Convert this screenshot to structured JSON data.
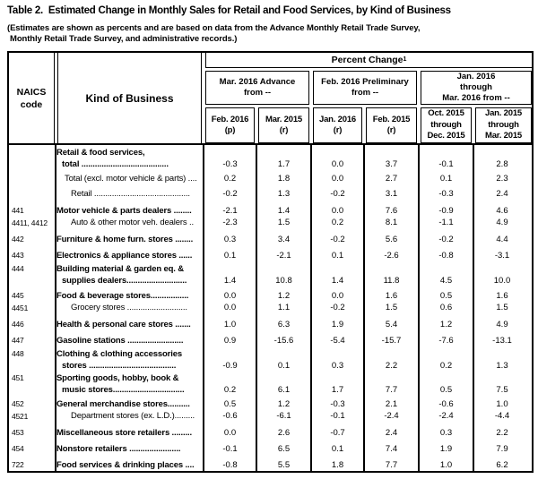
{
  "title": "Table 2.  Estimated Change in Monthly Sales for Retail and Food Services, by Kind of Business",
  "subtitle": {
    "line1": "(Estimates are shown as percents and are based on data from the Advance Monthly Retail Trade Survey,",
    "line2": "Monthly Retail Trade Survey, and administrative records.)"
  },
  "header": {
    "naics_line1": "NAICS",
    "naics_line2": "code",
    "kind_of_business": "Kind of Business",
    "percent_change": "Percent Change",
    "percent_change_note": "1",
    "groups": [
      {
        "label": "Mar. 2016 Advance\nfrom --"
      },
      {
        "label": "Feb. 2016 Preliminary\nfrom --"
      },
      {
        "label": "Jan. 2016\nthrough\nMar. 2016 from --"
      }
    ],
    "columns": [
      {
        "label": "Feb. 2016\n(p)"
      },
      {
        "label": "Mar. 2015\n(r)"
      },
      {
        "label": "Jan. 2016\n(r)"
      },
      {
        "label": "Feb. 2015\n(r)"
      },
      {
        "label": "Oct. 2015\nthrough\nDec. 2015"
      },
      {
        "label": "Jan. 2015\nthrough\nMar. 2015"
      }
    ]
  },
  "rows": [
    {
      "naics": "",
      "lines": [
        "Retail & food services,",
        "total ......................................."
      ],
      "bold": true,
      "level": 0,
      "values": [
        "-0.3",
        "1.7",
        "0.0",
        "3.7",
        "-0.1",
        "2.8"
      ]
    },
    {
      "naics": "",
      "lines": [
        "Total (excl. motor vehicle & parts) ...."
      ],
      "bold": false,
      "level": 1,
      "values": [
        "0.2",
        "1.8",
        "0.0",
        "2.7",
        "0.1",
        "2.3"
      ]
    },
    {
      "naics": "",
      "lines": [
        "Retail ..........................................."
      ],
      "bold": false,
      "level": 2,
      "values": [
        "-0.2",
        "1.3",
        "-0.2",
        "3.1",
        "-0.3",
        "2.4"
      ]
    },
    {
      "naics": "441",
      "lines": [
        "Motor vehicle & parts dealers ........"
      ],
      "bold": true,
      "level": 0,
      "values": [
        "-2.1",
        "1.4",
        "0.0",
        "7.6",
        "-0.9",
        "4.6"
      ]
    },
    {
      "naics": "4411, 4412",
      "lines": [
        "Auto & other motor veh. dealers .."
      ],
      "bold": false,
      "level": 2,
      "values": [
        "-2.3",
        "1.5",
        "0.2",
        "8.1",
        "-1.1",
        "4.9"
      ]
    },
    {
      "naics": "442",
      "lines": [
        "Furniture & home furn. stores ........"
      ],
      "bold": true,
      "level": 0,
      "values": [
        "0.3",
        "3.4",
        "-0.2",
        "5.6",
        "-0.2",
        "4.4"
      ]
    },
    {
      "naics": "443",
      "lines": [
        "Electronics & appliance stores ......"
      ],
      "bold": true,
      "level": 0,
      "values": [
        "0.1",
        "-2.1",
        "0.1",
        "-2.6",
        "-0.8",
        "-3.1"
      ]
    },
    {
      "naics": "444",
      "lines": [
        "Building material & garden eq. &",
        "supplies dealers..........................."
      ],
      "bold": true,
      "level": 0,
      "values": [
        "1.4",
        "10.8",
        "1.4",
        "11.8",
        "4.5",
        "10.0"
      ]
    },
    {
      "naics": "445",
      "lines": [
        "Food & beverage stores................."
      ],
      "bold": true,
      "level": 0,
      "values": [
        "0.0",
        "1.2",
        "0.0",
        "1.6",
        "0.5",
        "1.6"
      ]
    },
    {
      "naics": "4451",
      "lines": [
        "Grocery stores ..........................."
      ],
      "bold": false,
      "level": 2,
      "values": [
        "0.0",
        "1.1",
        "-0.2",
        "1.5",
        "0.6",
        "1.5"
      ]
    },
    {
      "naics": "446",
      "lines": [
        "Health & personal care stores ......."
      ],
      "bold": true,
      "level": 0,
      "values": [
        "1.0",
        "6.3",
        "1.9",
        "5.4",
        "1.2",
        "4.9"
      ]
    },
    {
      "naics": "447",
      "lines": [
        "Gasoline stations ........................."
      ],
      "bold": true,
      "level": 0,
      "values": [
        "0.9",
        "-15.6",
        "-5.4",
        "-15.7",
        "-7.6",
        "-13.1"
      ]
    },
    {
      "naics": "448",
      "lines": [
        "Clothing & clothing accessories",
        "stores ......................................."
      ],
      "bold": true,
      "level": 0,
      "values": [
        "-0.9",
        "0.1",
        "0.3",
        "2.2",
        "0.2",
        "1.3"
      ]
    },
    {
      "naics": "451",
      "lines": [
        "Sporting goods, hobby, book &",
        "music stores................................"
      ],
      "bold": true,
      "level": 0,
      "values": [
        "0.2",
        "6.1",
        "1.7",
        "7.7",
        "0.5",
        "7.5"
      ]
    },
    {
      "naics": "452",
      "lines": [
        "General merchandise stores.........."
      ],
      "bold": true,
      "level": 0,
      "values": [
        "0.5",
        "1.2",
        "-0.3",
        "2.1",
        "-0.6",
        "1.0"
      ]
    },
    {
      "naics": "4521",
      "lines": [
        "Department stores (ex. L.D.)........."
      ],
      "bold": false,
      "level": 2,
      "values": [
        "-0.6",
        "-6.1",
        "-0.1",
        "-2.4",
        "-2.4",
        "-4.4"
      ]
    },
    {
      "naics": "453",
      "lines": [
        "Miscellaneous store retailers ........."
      ],
      "bold": true,
      "level": 0,
      "values": [
        "0.0",
        "2.6",
        "-0.7",
        "2.4",
        "0.3",
        "2.2"
      ]
    },
    {
      "naics": "454",
      "lines": [
        "Nonstore retailers ......................."
      ],
      "bold": true,
      "level": 0,
      "values": [
        "-0.1",
        "6.5",
        "0.1",
        "7.4",
        "1.9",
        "7.9"
      ]
    },
    {
      "naics": "722",
      "lines": [
        "Food services & drinking places ...."
      ],
      "bold": true,
      "level": 0,
      "values": [
        "-0.8",
        "5.5",
        "1.8",
        "7.7",
        "1.0",
        "6.2"
      ]
    }
  ]
}
